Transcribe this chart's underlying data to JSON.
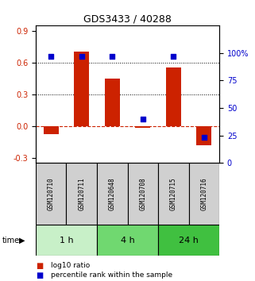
{
  "title": "GDS3433 / 40288",
  "samples": [
    "GSM120710",
    "GSM120711",
    "GSM120648",
    "GSM120708",
    "GSM120715",
    "GSM120716"
  ],
  "log10_ratio": [
    -0.08,
    0.7,
    0.45,
    -0.02,
    0.55,
    -0.18
  ],
  "percentile_rank": [
    97,
    97,
    97,
    40,
    97,
    23
  ],
  "groups": [
    {
      "label": "1 h",
      "indices": [
        0,
        1
      ],
      "color": "#c8f0c8"
    },
    {
      "label": "4 h",
      "indices": [
        2,
        3
      ],
      "color": "#70d870"
    },
    {
      "label": "24 h",
      "indices": [
        4,
        5
      ],
      "color": "#40c040"
    }
  ],
  "bar_color": "#cc2200",
  "dot_color": "#0000cc",
  "ylim_left": [
    -0.35,
    0.95
  ],
  "ylim_right": [
    0,
    125
  ],
  "yticks_left": [
    -0.3,
    0.0,
    0.3,
    0.6,
    0.9
  ],
  "yticks_right": [
    0,
    25,
    50,
    75,
    100
  ],
  "hlines": [
    0.3,
    0.6
  ],
  "zero_line_color": "#cc2200",
  "bar_width": 0.5,
  "sample_label_color": "#d0d0d0",
  "legend_labels": [
    "log10 ratio",
    "percentile rank within the sample"
  ]
}
